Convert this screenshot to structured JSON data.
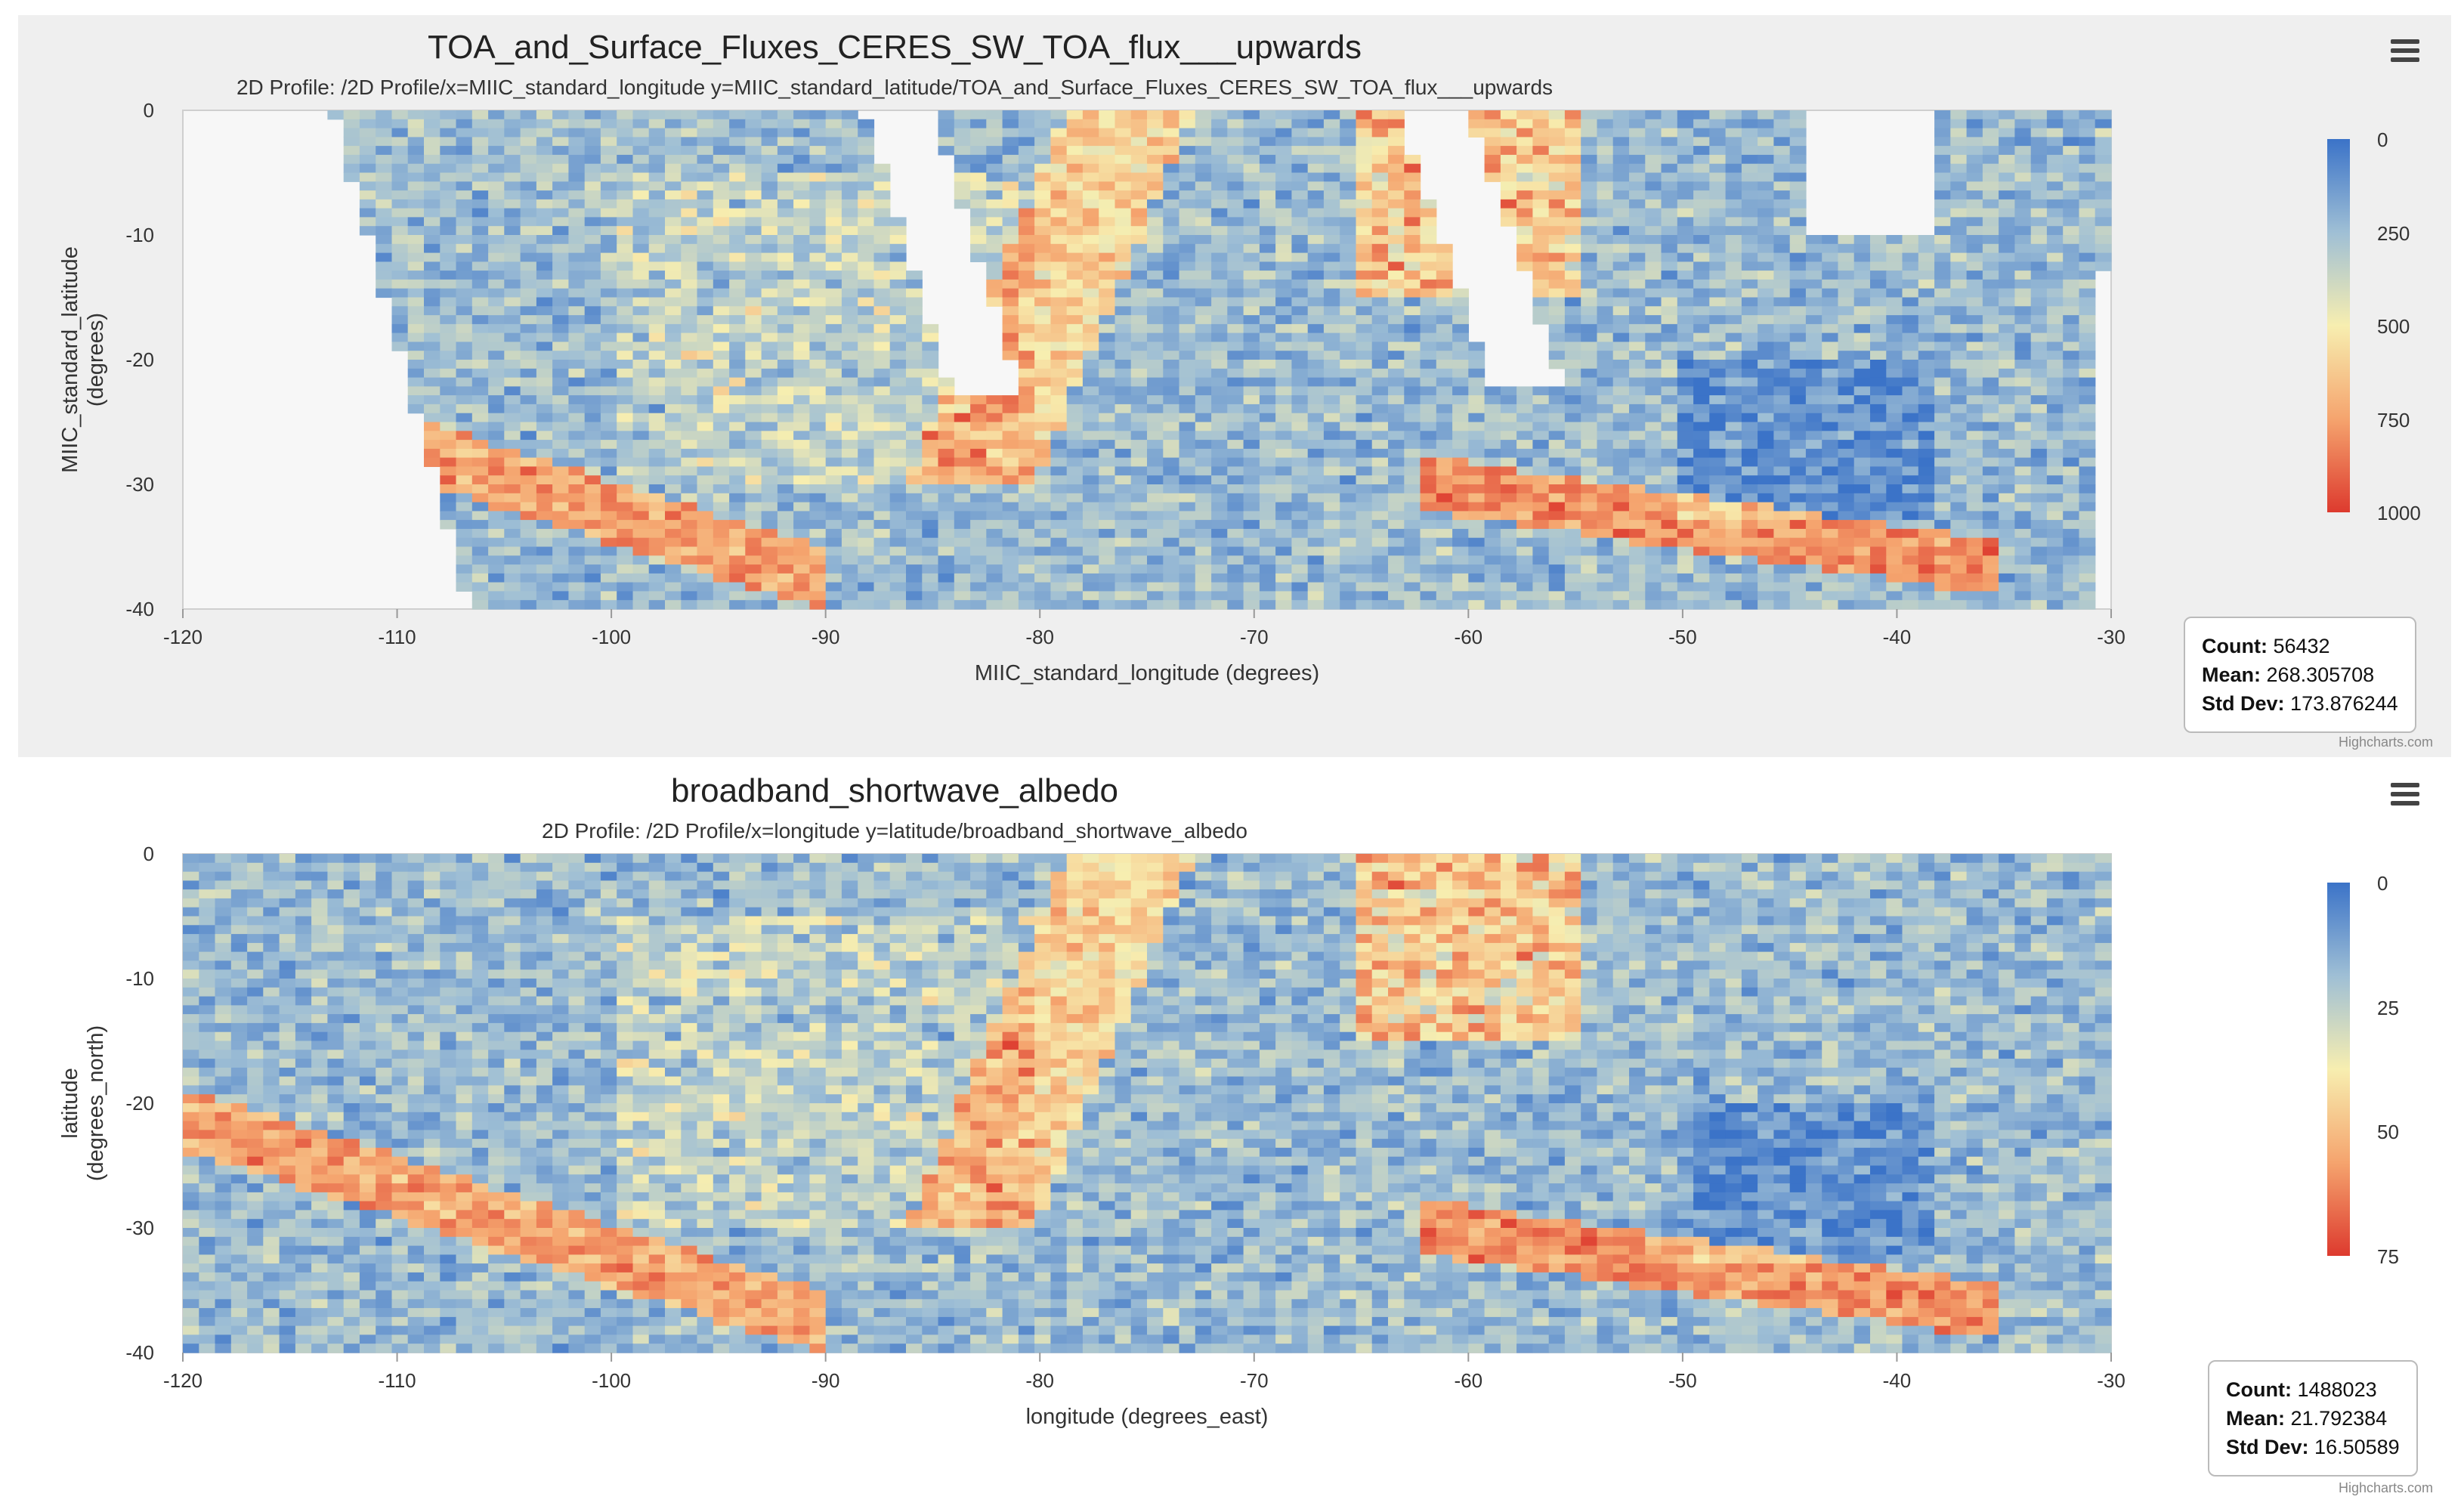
{
  "charts": [
    {
      "title": "TOA_and_Surface_Fluxes_CERES_SW_TOA_flux___upwards",
      "subtitle": "2D Profile: /2D Profile/x=MIIC_standard_longitude y=MIIC_standard_latitude/TOA_and_Surface_Fluxes_CERES_SW_TOA_flux___upwards",
      "colorbar_ticks": [
        "0",
        "250",
        "500",
        "750",
        "1000"
      ],
      "stats": {
        "count_label": "Count:",
        "count_value": "56432",
        "mean_label": "Mean:",
        "mean_value": "268.305708",
        "std_label": "Std Dev:",
        "std_value": "173.876244"
      },
      "credits": "Highcharts.com"
    },
    {
      "title": "broadband_shortwave_albedo",
      "subtitle": "2D Profile: /2D Profile/x=longitude y=latitude/broadband_shortwave_albedo",
      "colorbar_ticks": [
        "0",
        "25",
        "50",
        "75"
      ],
      "stats": {
        "count_label": "Count:",
        "count_value": "1488023",
        "mean_label": "Mean:",
        "mean_value": "21.792384",
        "std_label": "Std Dev:",
        "std_value": "16.50589"
      },
      "credits": "Highcharts.com"
    }
  ],
  "chart_data": [
    {
      "type": "heatmap",
      "title": "TOA_and_Surface_Fluxes_CERES_SW_TOA_flux___upwards",
      "subtitle": "2D Profile: /2D Profile/x=MIIC_standard_longitude y=MIIC_standard_latitude/TOA_and_Surface_Fluxes_CERES_SW_TOA_flux___upwards",
      "xlabel": "MIIC_standard_longitude (degrees)",
      "ylabel": "MIIC_standard_latitude",
      "ylabel2": "(degrees)",
      "xlim": [
        -120,
        -30
      ],
      "ylim": [
        -40,
        0
      ],
      "xticks": [
        -120,
        -110,
        -100,
        -90,
        -80,
        -70,
        -60,
        -50,
        -40,
        -30
      ],
      "yticks": [
        0,
        -10,
        -20,
        -30,
        -40
      ],
      "colorbar_range": [
        0,
        1000
      ],
      "colorbar_ticks": [
        0,
        250,
        500,
        750,
        1000
      ],
      "colors": [
        "#3b73c8",
        "#9fbfd5",
        "#f7eeb0",
        "#f5a46e",
        "#dd3a2e"
      ],
      "stats": {
        "count": 56432,
        "mean": 268.305708,
        "std_dev": 173.876244
      }
    },
    {
      "type": "heatmap",
      "title": "broadband_shortwave_albedo",
      "subtitle": "2D Profile: /2D Profile/x=longitude y=latitude/broadband_shortwave_albedo",
      "xlabel": "longitude (degrees_east)",
      "ylabel": "latitude",
      "ylabel2": "(degrees_north)",
      "xlim": [
        -120,
        -30
      ],
      "ylim": [
        -40,
        0
      ],
      "xticks": [
        -120,
        -110,
        -100,
        -90,
        -80,
        -70,
        -60,
        -50,
        -40,
        -30
      ],
      "yticks": [
        0,
        -10,
        -20,
        -30,
        -40
      ],
      "colorbar_range": [
        0,
        75
      ],
      "colorbar_ticks": [
        0,
        25,
        50,
        75
      ],
      "colors": [
        "#3b73c8",
        "#9fbfd5",
        "#f7eeb0",
        "#f5a46e",
        "#dd3a2e"
      ],
      "stats": {
        "count": 1488023,
        "mean": 21.792384,
        "std_dev": 16.50589
      }
    }
  ]
}
